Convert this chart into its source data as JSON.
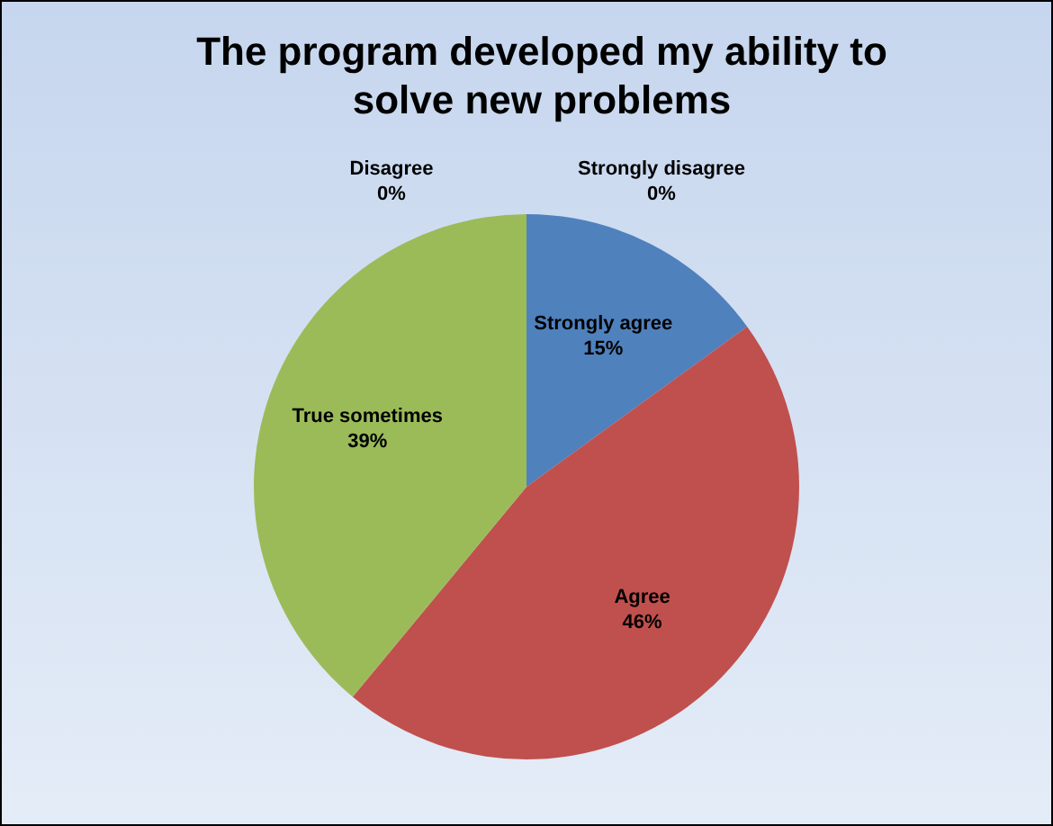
{
  "chart_data": {
    "type": "pie",
    "title": "The program developed my ability to solve new problems",
    "categories": [
      "Strongly agree",
      "Agree",
      "True sometimes",
      "Disagree",
      "Strongly disagree"
    ],
    "values": [
      15,
      46,
      39,
      0,
      0
    ],
    "colors": [
      "#4f81bd",
      "#c0504d",
      "#9bbb59",
      "#8064a2",
      "#4bacc6"
    ],
    "value_labels": [
      "15%",
      "46%",
      "39%",
      "0%",
      "0%"
    ],
    "legend": false
  }
}
